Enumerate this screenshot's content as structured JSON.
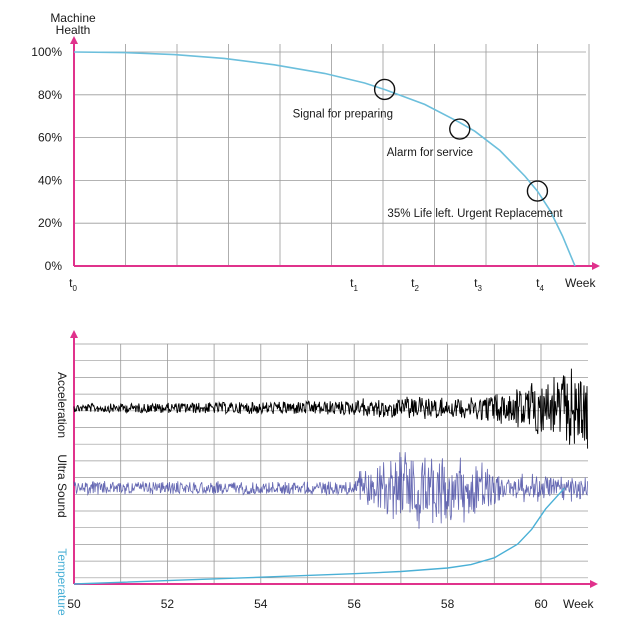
{
  "chart_data": [
    {
      "type": "line",
      "ylabel": "Machine Health",
      "xlabel": "Week",
      "y_ticks": [
        "100%",
        "80%",
        "60%",
        "40%",
        "20%",
        "0%"
      ],
      "x_ticks": [
        {
          "base": "t",
          "sub": "0"
        },
        {
          "base": "t",
          "sub": "1"
        },
        {
          "base": "t",
          "sub": "2"
        },
        {
          "base": "t",
          "sub": "3"
        },
        {
          "base": "t",
          "sub": "4"
        }
      ],
      "ylim": [
        0,
        100
      ],
      "grid": true,
      "series": [
        {
          "values": [
            {
              "x": 0.0,
              "y": 100
            },
            {
              "x": 0.1,
              "y": 99.7
            },
            {
              "x": 0.2,
              "y": 98.8
            },
            {
              "x": 0.3,
              "y": 97
            },
            {
              "x": 0.4,
              "y": 94
            },
            {
              "x": 0.5,
              "y": 90
            },
            {
              "x": 0.58,
              "y": 85.5
            },
            {
              "x": 0.62,
              "y": 82.5
            },
            {
              "x": 0.7,
              "y": 75.5
            },
            {
              "x": 0.77,
              "y": 67
            },
            {
              "x": 0.8,
              "y": 63
            },
            {
              "x": 0.85,
              "y": 54
            },
            {
              "x": 0.9,
              "y": 42
            },
            {
              "x": 0.925,
              "y": 35
            },
            {
              "x": 0.95,
              "y": 26
            },
            {
              "x": 0.975,
              "y": 14
            },
            {
              "x": 1.0,
              "y": 0
            }
          ]
        }
      ],
      "annotations": [
        {
          "text": "Signal for preparing",
          "x": 0.62,
          "y": 82.5
        },
        {
          "text": "Alarm for service",
          "x": 0.77,
          "y": 64
        },
        {
          "text": "35% Life left. Urgent Replacement",
          "x": 0.925,
          "y": 35
        }
      ],
      "colors": {
        "axis": "#e0328c",
        "curve": "#6cbfdc",
        "grid": "#9a9a9a",
        "marker": "#111111"
      }
    },
    {
      "type": "line",
      "xlabel": "Week",
      "x": [
        50,
        52,
        54,
        56,
        58,
        60
      ],
      "xlim": [
        50,
        60.5
      ],
      "grid": true,
      "series": [
        {
          "name": "Acceleration",
          "color": "#000000",
          "kind": "vibration",
          "amplitude_trend": "rising"
        },
        {
          "name": "Ultra Sound",
          "color": "#4b4fa6",
          "kind": "vibration",
          "amplitude_trend": "burst 56-59"
        },
        {
          "name": "Temperature",
          "color": "#4ab0d6",
          "kind": "curve",
          "values": [
            {
              "x": 50,
              "y": 0
            },
            {
              "x": 52,
              "y": 3
            },
            {
              "x": 54,
              "y": 6
            },
            {
              "x": 56,
              "y": 9
            },
            {
              "x": 57,
              "y": 11
            },
            {
              "x": 58,
              "y": 14
            },
            {
              "x": 58.5,
              "y": 17
            },
            {
              "x": 59,
              "y": 23
            },
            {
              "x": 59.5,
              "y": 35
            },
            {
              "x": 59.8,
              "y": 48
            },
            {
              "x": 60.1,
              "y": 66
            },
            {
              "x": 60.5,
              "y": 84
            }
          ]
        }
      ],
      "colors": {
        "axis": "#e0328c",
        "grid": "#9a9a9a"
      }
    }
  ]
}
